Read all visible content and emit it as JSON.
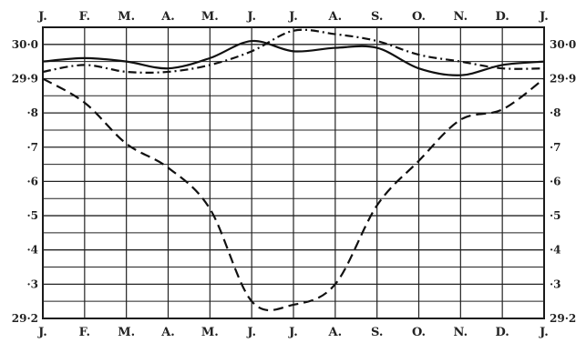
{
  "chart_data": {
    "type": "line",
    "x": [
      "J.",
      "F.",
      "M.",
      "A.",
      "M.",
      "J.",
      "J.",
      "A.",
      "S.",
      "O.",
      "N.",
      "D.",
      "J."
    ],
    "xlabel": "",
    "ylabel": "",
    "ylim": [
      29.2,
      30.05
    ],
    "grid": true,
    "y_ticks": [
      {
        "value": 30.0,
        "left": "30·0",
        "right": "30·0"
      },
      {
        "value": 29.9,
        "left": "29·9",
        "right": "29·9"
      },
      {
        "value": 29.8,
        "left": "·8",
        "right": "·8"
      },
      {
        "value": 29.7,
        "left": "·7",
        "right": "·7"
      },
      {
        "value": 29.6,
        "left": "·6",
        "right": "·6"
      },
      {
        "value": 29.5,
        "left": "·5",
        "right": "·5"
      },
      {
        "value": 29.4,
        "left": "·4",
        "right": "·4"
      },
      {
        "value": 29.3,
        "left": "·3",
        "right": "·3"
      },
      {
        "value": 29.2,
        "left": "29·2",
        "right": "29·2"
      }
    ],
    "series": [
      {
        "style": "solid",
        "values": [
          29.95,
          29.96,
          29.95,
          29.93,
          29.96,
          30.01,
          29.98,
          29.99,
          29.99,
          29.93,
          29.91,
          29.94,
          29.95
        ]
      },
      {
        "style": "dash-dot",
        "values": [
          29.92,
          29.94,
          29.92,
          29.92,
          29.94,
          29.98,
          30.04,
          30.03,
          30.01,
          29.97,
          29.95,
          29.93,
          29.93
        ]
      },
      {
        "style": "dashed",
        "values": [
          29.9,
          29.83,
          29.71,
          29.64,
          29.52,
          29.25,
          29.24,
          29.3,
          29.53,
          29.66,
          29.78,
          29.81,
          29.9
        ]
      }
    ]
  }
}
